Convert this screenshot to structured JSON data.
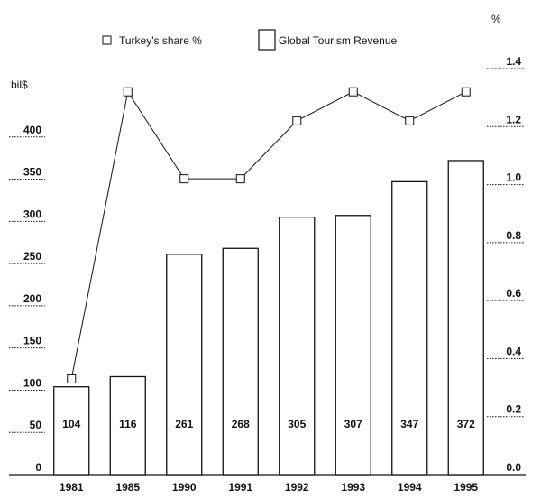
{
  "chart_data": {
    "type": "bar",
    "categories": [
      "1981",
      "1985",
      "1990",
      "1991",
      "1992",
      "1993",
      "1994",
      "1995"
    ],
    "series": [
      {
        "name": "Global  Tourism Revenue",
        "type": "bar",
        "axis": "left",
        "values": [
          104,
          116,
          261,
          268,
          305,
          307,
          347,
          372
        ],
        "value_labels": [
          "104",
          "116",
          "261",
          "268",
          "305",
          "307",
          "347",
          "372"
        ]
      },
      {
        "name": "Turkey's share   %",
        "type": "line",
        "axis": "right",
        "marker": "square",
        "values": [
          0.33,
          1.32,
          1.02,
          1.02,
          1.22,
          1.32,
          1.22,
          1.32
        ]
      }
    ],
    "title": "",
    "xlabel": "",
    "ylabel": "bil$",
    "y2label": "%",
    "ylim": [
      0,
      450
    ],
    "y2lim": [
      0,
      1.4
    ],
    "yticks": [
      0,
      50,
      100,
      150,
      200,
      250,
      300,
      350,
      400
    ],
    "y2ticks": [
      0.0,
      0.2,
      0.4,
      0.6,
      0.8,
      1.0,
      1.2,
      1.4
    ],
    "ytick_labels": [
      "0",
      "50",
      "100",
      "150",
      "200",
      "250",
      "300",
      "350",
      "400"
    ],
    "y2tick_labels": [
      "0.0",
      "0.2",
      "0.4",
      "0.6",
      "0.8",
      "1.0",
      "1.2",
      "1.4"
    ],
    "legend_position": "top",
    "grid": false,
    "colors": {
      "ink": "#111111",
      "background": "#ffffff"
    }
  }
}
